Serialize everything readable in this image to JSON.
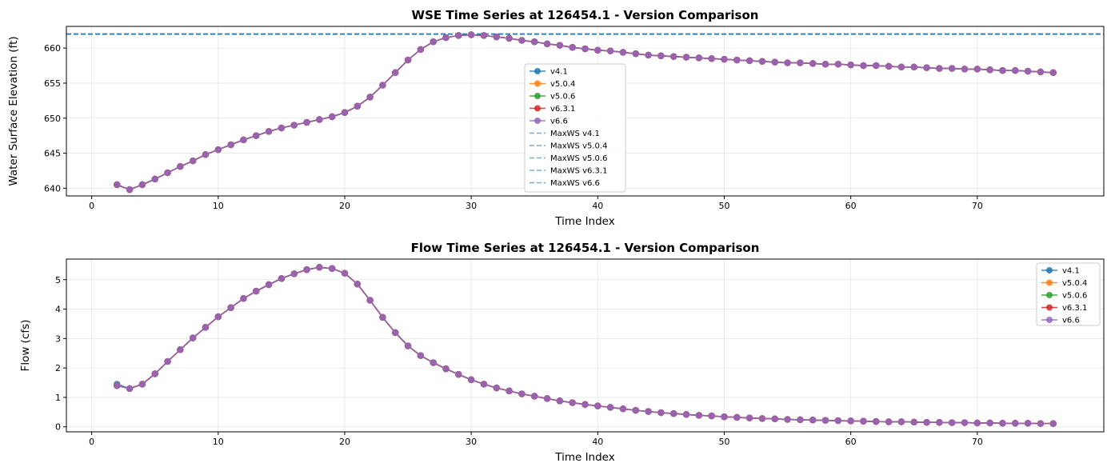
{
  "chart_data": [
    {
      "type": "line",
      "title": "WSE Time Series at 126454.1 - Version Comparison",
      "xlabel": "Time Index",
      "ylabel": "Water Surface Elevation (ft)",
      "xlim": [
        -2,
        80
      ],
      "ylim": [
        638.9,
        663.1
      ],
      "xticks": [
        0,
        10,
        20,
        30,
        40,
        50,
        60,
        70
      ],
      "yticks": [
        640,
        645,
        650,
        655,
        660
      ],
      "grid": true,
      "legend_position": "center",
      "x": [
        2,
        3,
        4,
        5,
        6,
        7,
        8,
        9,
        10,
        11,
        12,
        13,
        14,
        15,
        16,
        17,
        18,
        19,
        20,
        21,
        22,
        23,
        24,
        25,
        26,
        27,
        28,
        29,
        30,
        31,
        32,
        33,
        34,
        35,
        36,
        37,
        38,
        39,
        40,
        41,
        42,
        43,
        44,
        45,
        46,
        47,
        48,
        49,
        50,
        51,
        52,
        53,
        54,
        55,
        56,
        57,
        58,
        59,
        60,
        61,
        62,
        63,
        64,
        65,
        66,
        67,
        68,
        69,
        70,
        71,
        72,
        73,
        74,
        75,
        76
      ],
      "series": [
        {
          "name": "v4.1",
          "color": "#1f77b4",
          "values": [
            640.5,
            639.8,
            640.5,
            641.3,
            642.2,
            643.1,
            643.9,
            644.8,
            645.5,
            646.2,
            646.9,
            647.5,
            648.1,
            648.6,
            649.0,
            649.4,
            649.8,
            650.2,
            650.8,
            651.7,
            653.0,
            654.7,
            656.5,
            658.3,
            659.8,
            660.9,
            661.5,
            661.8,
            661.9,
            661.8,
            661.6,
            661.4,
            661.1,
            660.9,
            660.6,
            660.4,
            660.1,
            659.9,
            659.7,
            659.6,
            659.4,
            659.2,
            659.0,
            658.9,
            658.8,
            658.7,
            658.6,
            658.5,
            658.4,
            658.3,
            658.2,
            658.1,
            658.0,
            657.9,
            657.9,
            657.8,
            657.7,
            657.7,
            657.6,
            657.5,
            657.5,
            657.4,
            657.3,
            657.3,
            657.2,
            657.1,
            657.1,
            657.0,
            657.0,
            656.9,
            656.8,
            656.8,
            656.7,
            656.6,
            656.5
          ]
        },
        {
          "name": "v5.0.4",
          "color": "#ff7f0e",
          "values": [
            640.5,
            639.8,
            640.5,
            641.3,
            642.2,
            643.1,
            643.9,
            644.8,
            645.5,
            646.2,
            646.9,
            647.5,
            648.1,
            648.6,
            649.0,
            649.4,
            649.8,
            650.2,
            650.8,
            651.7,
            653.0,
            654.7,
            656.5,
            658.3,
            659.8,
            660.9,
            661.5,
            661.8,
            661.9,
            661.8,
            661.6,
            661.4,
            661.1,
            660.9,
            660.6,
            660.4,
            660.1,
            659.9,
            659.7,
            659.6,
            659.4,
            659.2,
            659.0,
            658.9,
            658.8,
            658.7,
            658.6,
            658.5,
            658.4,
            658.3,
            658.2,
            658.1,
            658.0,
            657.9,
            657.9,
            657.8,
            657.7,
            657.7,
            657.6,
            657.5,
            657.5,
            657.4,
            657.3,
            657.3,
            657.2,
            657.1,
            657.1,
            657.0,
            657.0,
            656.9,
            656.8,
            656.8,
            656.7,
            656.6,
            656.5
          ]
        },
        {
          "name": "v5.0.6",
          "color": "#2ca02c",
          "values": [
            640.5,
            639.8,
            640.5,
            641.3,
            642.2,
            643.1,
            643.9,
            644.8,
            645.5,
            646.2,
            646.9,
            647.5,
            648.1,
            648.6,
            649.0,
            649.4,
            649.8,
            650.2,
            650.8,
            651.7,
            653.0,
            654.7,
            656.5,
            658.3,
            659.8,
            660.9,
            661.5,
            661.8,
            661.9,
            661.8,
            661.6,
            661.4,
            661.1,
            660.9,
            660.6,
            660.4,
            660.1,
            659.9,
            659.7,
            659.6,
            659.4,
            659.2,
            659.0,
            658.9,
            658.8,
            658.7,
            658.6,
            658.5,
            658.4,
            658.3,
            658.2,
            658.1,
            658.0,
            657.9,
            657.9,
            657.8,
            657.7,
            657.7,
            657.6,
            657.5,
            657.5,
            657.4,
            657.3,
            657.3,
            657.2,
            657.1,
            657.1,
            657.0,
            657.0,
            656.9,
            656.8,
            656.8,
            656.7,
            656.6,
            656.5
          ]
        },
        {
          "name": "v6.3.1",
          "color": "#d62728",
          "values": [
            640.5,
            639.8,
            640.5,
            641.3,
            642.2,
            643.1,
            643.9,
            644.8,
            645.5,
            646.2,
            646.9,
            647.5,
            648.1,
            648.6,
            649.0,
            649.4,
            649.8,
            650.2,
            650.8,
            651.7,
            653.0,
            654.7,
            656.5,
            658.3,
            659.8,
            660.9,
            661.5,
            661.8,
            661.9,
            661.8,
            661.6,
            661.4,
            661.1,
            660.9,
            660.6,
            660.4,
            660.1,
            659.9,
            659.7,
            659.6,
            659.4,
            659.2,
            659.0,
            658.9,
            658.8,
            658.7,
            658.6,
            658.5,
            658.4,
            658.3,
            658.2,
            658.1,
            658.0,
            657.9,
            657.9,
            657.8,
            657.7,
            657.7,
            657.6,
            657.5,
            657.5,
            657.4,
            657.3,
            657.3,
            657.2,
            657.1,
            657.1,
            657.0,
            657.0,
            656.9,
            656.8,
            656.8,
            656.7,
            656.6,
            656.5
          ]
        },
        {
          "name": "v6.6",
          "color": "#9467bd",
          "values": [
            640.5,
            639.8,
            640.5,
            641.3,
            642.2,
            643.1,
            643.9,
            644.8,
            645.5,
            646.2,
            646.9,
            647.5,
            648.1,
            648.6,
            649.0,
            649.4,
            649.8,
            650.2,
            650.8,
            651.7,
            653.0,
            654.7,
            656.5,
            658.3,
            659.8,
            660.9,
            661.5,
            661.8,
            661.9,
            661.8,
            661.6,
            661.4,
            661.1,
            660.9,
            660.6,
            660.4,
            660.1,
            659.9,
            659.7,
            659.6,
            659.4,
            659.2,
            659.0,
            658.9,
            658.8,
            658.7,
            658.6,
            658.5,
            658.4,
            658.3,
            658.2,
            658.1,
            658.0,
            657.9,
            657.9,
            657.8,
            657.7,
            657.7,
            657.6,
            657.5,
            657.5,
            657.4,
            657.3,
            657.3,
            657.2,
            657.1,
            657.1,
            657.0,
            657.0,
            656.9,
            656.8,
            656.8,
            656.7,
            656.6,
            656.5
          ]
        }
      ],
      "hlines": [
        {
          "name": "MaxWS v4.1",
          "color": "#1f77b4",
          "value": 662.0
        },
        {
          "name": "MaxWS v5.0.4",
          "color": "#1f77b4",
          "value": 662.0
        },
        {
          "name": "MaxWS v5.0.6",
          "color": "#1f77b4",
          "value": 662.0
        },
        {
          "name": "MaxWS v6.3.1",
          "color": "#1f77b4",
          "value": 662.0
        },
        {
          "name": "MaxWS v6.6",
          "color": "#1f77b4",
          "value": 662.0
        }
      ]
    },
    {
      "type": "line",
      "title": "Flow Time Series at 126454.1 - Version Comparison",
      "xlabel": "Time Index",
      "ylabel": "Flow (cfs)",
      "xlim": [
        -2,
        80
      ],
      "ylim": [
        -0.17,
        5.7
      ],
      "xticks": [
        0,
        10,
        20,
        30,
        40,
        50,
        60,
        70
      ],
      "yticks": [
        0,
        1,
        2,
        3,
        4,
        5
      ],
      "grid": true,
      "legend_position": "top-right",
      "x": [
        2,
        3,
        4,
        5,
        6,
        7,
        8,
        9,
        10,
        11,
        12,
        13,
        14,
        15,
        16,
        17,
        18,
        19,
        20,
        21,
        22,
        23,
        24,
        25,
        26,
        27,
        28,
        29,
        30,
        31,
        32,
        33,
        34,
        35,
        36,
        37,
        38,
        39,
        40,
        41,
        42,
        43,
        44,
        45,
        46,
        47,
        48,
        49,
        50,
        51,
        52,
        53,
        54,
        55,
        56,
        57,
        58,
        59,
        60,
        61,
        62,
        63,
        64,
        65,
        66,
        67,
        68,
        69,
        70,
        71,
        72,
        73,
        74,
        75,
        76
      ],
      "series": [
        {
          "name": "v4.1",
          "color": "#1f77b4",
          "values": [
            1.45,
            1.3,
            1.45,
            1.8,
            2.22,
            2.62,
            3.02,
            3.38,
            3.74,
            4.05,
            4.36,
            4.61,
            4.83,
            5.04,
            5.2,
            5.34,
            5.42,
            5.38,
            5.22,
            4.85,
            4.3,
            3.72,
            3.2,
            2.75,
            2.42,
            2.18,
            1.97,
            1.78,
            1.6,
            1.45,
            1.32,
            1.22,
            1.12,
            1.04,
            0.96,
            0.88,
            0.82,
            0.76,
            0.71,
            0.66,
            0.61,
            0.56,
            0.52,
            0.48,
            0.45,
            0.42,
            0.39,
            0.37,
            0.34,
            0.32,
            0.3,
            0.28,
            0.27,
            0.25,
            0.24,
            0.23,
            0.22,
            0.21,
            0.2,
            0.19,
            0.18,
            0.17,
            0.17,
            0.16,
            0.15,
            0.15,
            0.14,
            0.14,
            0.13,
            0.13,
            0.12,
            0.12,
            0.12,
            0.11,
            0.11
          ]
        },
        {
          "name": "v5.0.4",
          "color": "#ff7f0e",
          "values": [
            1.4,
            1.3,
            1.45,
            1.8,
            2.22,
            2.62,
            3.02,
            3.38,
            3.74,
            4.05,
            4.36,
            4.61,
            4.83,
            5.04,
            5.2,
            5.34,
            5.42,
            5.38,
            5.22,
            4.85,
            4.3,
            3.72,
            3.2,
            2.75,
            2.42,
            2.18,
            1.97,
            1.78,
            1.6,
            1.45,
            1.32,
            1.22,
            1.12,
            1.04,
            0.96,
            0.88,
            0.82,
            0.76,
            0.71,
            0.66,
            0.61,
            0.56,
            0.52,
            0.48,
            0.45,
            0.42,
            0.39,
            0.37,
            0.34,
            0.32,
            0.3,
            0.28,
            0.27,
            0.25,
            0.24,
            0.23,
            0.22,
            0.21,
            0.2,
            0.19,
            0.18,
            0.17,
            0.17,
            0.16,
            0.15,
            0.15,
            0.14,
            0.14,
            0.13,
            0.13,
            0.12,
            0.12,
            0.12,
            0.11,
            0.11
          ]
        },
        {
          "name": "v5.0.6",
          "color": "#2ca02c",
          "values": [
            1.4,
            1.3,
            1.45,
            1.8,
            2.22,
            2.62,
            3.02,
            3.38,
            3.74,
            4.05,
            4.36,
            4.61,
            4.83,
            5.04,
            5.2,
            5.34,
            5.42,
            5.38,
            5.22,
            4.85,
            4.3,
            3.72,
            3.2,
            2.75,
            2.42,
            2.18,
            1.97,
            1.78,
            1.6,
            1.45,
            1.32,
            1.22,
            1.12,
            1.04,
            0.96,
            0.88,
            0.82,
            0.76,
            0.71,
            0.66,
            0.61,
            0.56,
            0.52,
            0.48,
            0.45,
            0.42,
            0.39,
            0.37,
            0.34,
            0.32,
            0.3,
            0.28,
            0.27,
            0.25,
            0.24,
            0.23,
            0.22,
            0.21,
            0.2,
            0.19,
            0.18,
            0.17,
            0.17,
            0.16,
            0.15,
            0.15,
            0.14,
            0.14,
            0.13,
            0.13,
            0.12,
            0.12,
            0.12,
            0.11,
            0.11
          ]
        },
        {
          "name": "v6.3.1",
          "color": "#d62728",
          "values": [
            1.4,
            1.3,
            1.45,
            1.8,
            2.22,
            2.62,
            3.02,
            3.38,
            3.74,
            4.05,
            4.36,
            4.61,
            4.83,
            5.04,
            5.2,
            5.34,
            5.42,
            5.38,
            5.22,
            4.85,
            4.3,
            3.72,
            3.2,
            2.75,
            2.42,
            2.18,
            1.97,
            1.78,
            1.6,
            1.45,
            1.32,
            1.22,
            1.12,
            1.04,
            0.96,
            0.88,
            0.82,
            0.76,
            0.71,
            0.66,
            0.61,
            0.56,
            0.52,
            0.48,
            0.45,
            0.42,
            0.39,
            0.37,
            0.34,
            0.32,
            0.3,
            0.28,
            0.27,
            0.25,
            0.24,
            0.23,
            0.22,
            0.21,
            0.2,
            0.19,
            0.18,
            0.17,
            0.17,
            0.16,
            0.15,
            0.15,
            0.14,
            0.14,
            0.13,
            0.13,
            0.12,
            0.12,
            0.12,
            0.11,
            0.11
          ]
        },
        {
          "name": "v6.6",
          "color": "#9467bd",
          "values": [
            1.4,
            1.3,
            1.45,
            1.8,
            2.22,
            2.62,
            3.02,
            3.38,
            3.74,
            4.05,
            4.36,
            4.61,
            4.83,
            5.04,
            5.2,
            5.34,
            5.42,
            5.38,
            5.22,
            4.85,
            4.3,
            3.72,
            3.2,
            2.75,
            2.42,
            2.18,
            1.97,
            1.78,
            1.6,
            1.45,
            1.32,
            1.22,
            1.12,
            1.04,
            0.96,
            0.88,
            0.82,
            0.76,
            0.71,
            0.66,
            0.61,
            0.56,
            0.52,
            0.48,
            0.45,
            0.42,
            0.39,
            0.37,
            0.34,
            0.32,
            0.3,
            0.28,
            0.27,
            0.25,
            0.24,
            0.23,
            0.22,
            0.21,
            0.2,
            0.19,
            0.18,
            0.17,
            0.17,
            0.16,
            0.15,
            0.15,
            0.14,
            0.14,
            0.13,
            0.13,
            0.12,
            0.12,
            0.12,
            0.11,
            0.11
          ]
        }
      ],
      "hlines": []
    }
  ]
}
